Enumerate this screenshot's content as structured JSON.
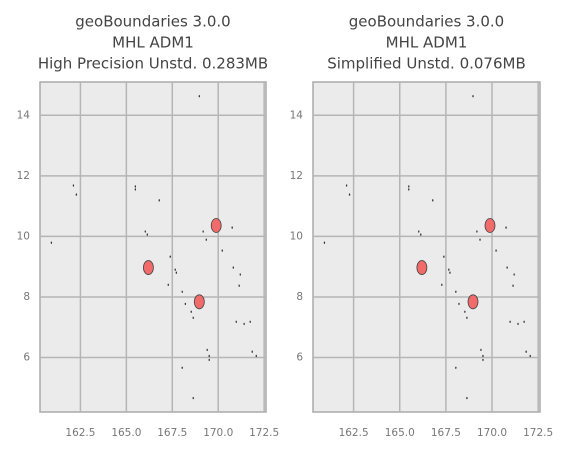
{
  "chart_data": [
    {
      "type": "scatter",
      "title": [
        "geoBoundaries 3.0.0",
        "MHL ADM1",
        "High Precision Unstd. 0.283MB"
      ],
      "xlim": [
        160.3,
        172.6
      ],
      "ylim": [
        4.2,
        15.1
      ],
      "xticks": [
        162.5,
        165.0,
        167.5,
        170.0,
        172.5
      ],
      "yticks": [
        6,
        8,
        10,
        12,
        14
      ],
      "grid": true,
      "points": {
        "color": "#333333",
        "x": [
          162.12,
          162.28,
          160.92,
          165.49,
          165.49,
          166.79,
          166.03,
          166.14,
          167.66,
          167.72,
          167.39,
          167.28,
          168.04,
          168.21,
          168.53,
          168.64,
          168.97,
          169.18,
          169.35,
          170.22,
          170.76,
          170.82,
          171.2,
          171.14,
          170.98,
          171.41,
          171.74,
          169.4,
          169.51,
          169.51,
          168.04,
          168.64,
          171.85,
          172.07
        ],
        "y": [
          11.68,
          11.38,
          9.79,
          11.65,
          11.55,
          11.19,
          10.16,
          10.06,
          8.9,
          8.8,
          9.33,
          8.4,
          8.17,
          7.77,
          7.51,
          7.31,
          14.63,
          10.16,
          9.89,
          9.53,
          10.29,
          8.97,
          8.74,
          8.37,
          7.18,
          7.11,
          7.18,
          6.25,
          6.05,
          5.92,
          5.66,
          4.66,
          6.19,
          6.05
        ]
      },
      "regions": {
        "color": "#f26b6b",
        "x": [
          166.2,
          169.89,
          168.97
        ],
        "y": [
          8.97,
          10.36,
          7.84
        ]
      }
    },
    {
      "type": "scatter",
      "title": [
        "geoBoundaries 3.0.0",
        "MHL ADM1",
        "Simplified Unstd. 0.076MB"
      ],
      "xlim": [
        160.3,
        172.6
      ],
      "ylim": [
        4.2,
        15.1
      ],
      "xticks": [
        162.5,
        165.0,
        167.5,
        170.0,
        172.5
      ],
      "yticks": [
        6,
        8,
        10,
        12,
        14
      ],
      "grid": true,
      "points": {
        "color": "#333333",
        "x": [
          162.12,
          162.28,
          160.92,
          165.49,
          165.49,
          166.79,
          166.03,
          166.14,
          167.66,
          167.72,
          167.39,
          167.28,
          168.04,
          168.21,
          168.53,
          168.64,
          168.97,
          169.18,
          169.35,
          170.22,
          170.76,
          170.82,
          171.2,
          171.14,
          170.98,
          171.41,
          171.74,
          169.4,
          169.51,
          169.51,
          168.04,
          168.64,
          171.85,
          172.07
        ],
        "y": [
          11.68,
          11.38,
          9.79,
          11.65,
          11.55,
          11.19,
          10.16,
          10.06,
          8.9,
          8.8,
          9.33,
          8.4,
          8.17,
          7.77,
          7.51,
          7.31,
          14.63,
          10.16,
          9.89,
          9.53,
          10.29,
          8.97,
          8.74,
          8.37,
          7.18,
          7.11,
          7.18,
          6.25,
          6.05,
          5.92,
          5.66,
          4.66,
          6.19,
          6.05
        ]
      },
      "regions": {
        "color": "#f26b6b",
        "x": [
          166.2,
          169.89,
          168.97
        ],
        "y": [
          8.97,
          10.36,
          7.84
        ]
      }
    }
  ]
}
